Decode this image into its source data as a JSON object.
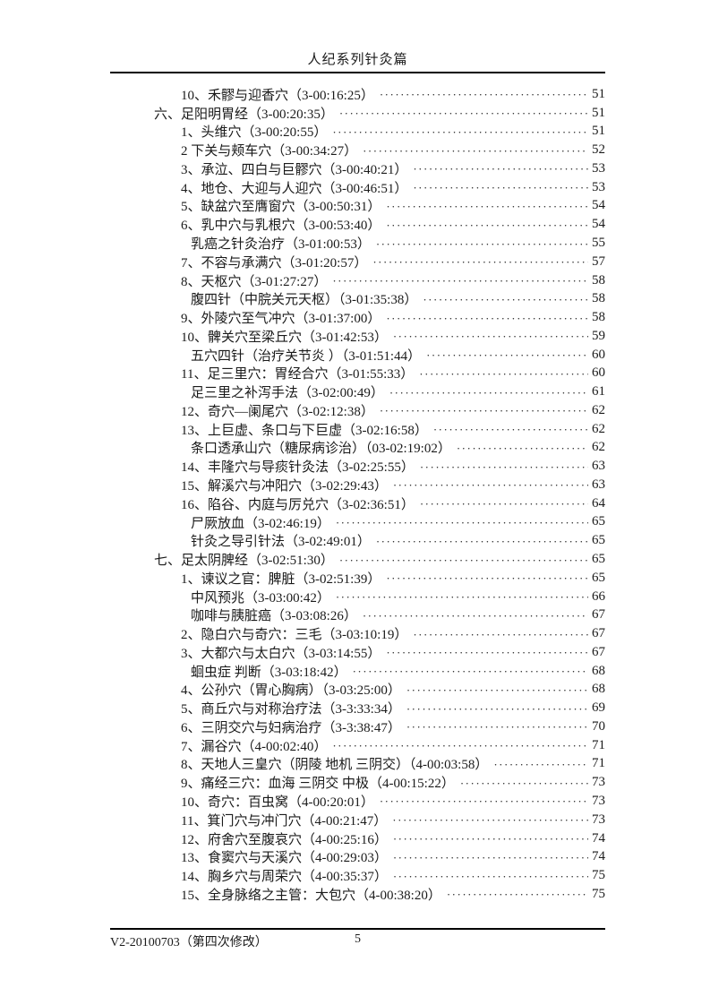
{
  "header": {
    "title": "人纪系列针灸篇"
  },
  "footer": {
    "version": "V2-20100703（第四次修改）",
    "page_number": "5"
  },
  "colors": {
    "text": "#1a1a1a",
    "rule": "#000000",
    "background": "#ffffff"
  },
  "toc": {
    "entries": [
      {
        "level": "item",
        "text": "10、禾髎与迎香穴（3-00:16:25）",
        "page": "51"
      },
      {
        "level": "chapter",
        "text": "六、足阳明胃经（3-00:20:35）",
        "page": "51"
      },
      {
        "level": "item",
        "text": "1、头维穴（3-00:20:55）",
        "page": "51"
      },
      {
        "level": "item",
        "text": "2 下关与颊车穴（3-00:34:27）",
        "page": "52"
      },
      {
        "level": "item",
        "text": "3、承泣、四白与巨髎穴（3-00:40:21）",
        "page": "53"
      },
      {
        "level": "item",
        "text": "4、地仓、大迎与人迎穴（3-00:46:51）",
        "page": "53"
      },
      {
        "level": "item",
        "text": "5、缺盆穴至膺窗穴（3-00:50:31）",
        "page": "54"
      },
      {
        "level": "item",
        "text": "6、乳中穴与乳根穴（3-00:53:40）",
        "page": "54"
      },
      {
        "level": "sub",
        "text": "乳癌之针灸治疗（3-01:00:53）",
        "page": "55"
      },
      {
        "level": "item",
        "text": "7、不容与承满穴（3-01:20:57）",
        "page": "57"
      },
      {
        "level": "item",
        "text": "8、天枢穴（3-01:27:27）",
        "page": "58"
      },
      {
        "level": "sub",
        "text": "腹四针（中脘关元天枢）（3-01:35:38）",
        "page": "58"
      },
      {
        "level": "item",
        "text": "9、外陵穴至气冲穴（3-01:37:00）",
        "page": "58"
      },
      {
        "level": "item",
        "text": "10、髀关穴至梁丘穴（3-01:42:53）",
        "page": "59"
      },
      {
        "level": "sub",
        "text": "五穴四针（治疗关节炎 ）（3-01:51:44）",
        "page": "60"
      },
      {
        "level": "item",
        "text": "11、足三里穴：胃经合穴（3-01:55:33）",
        "page": "60"
      },
      {
        "level": "sub",
        "text": "足三里之补泻手法（3-02:00:49）",
        "page": "61"
      },
      {
        "level": "item",
        "text": "12、奇穴—阑尾穴（3-02:12:38）",
        "page": "62"
      },
      {
        "level": "item",
        "text": "13、上巨虚、条口与下巨虚（3-02:16:58）",
        "page": "62"
      },
      {
        "level": "sub",
        "text": "条口透承山穴（糖尿病诊治）（03-02:19:02）",
        "page": "62"
      },
      {
        "level": "item",
        "text": "14、丰隆穴与导痰针灸法（3-02:25:55）",
        "page": "63"
      },
      {
        "level": "item",
        "text": "15、解溪穴与冲阳穴（3-02:29:43）",
        "page": "63"
      },
      {
        "level": "item",
        "text": "16、陷谷、内庭与厉兑穴（3-02:36:51）",
        "page": "64"
      },
      {
        "level": "sub",
        "text": "尸厥放血（3-02:46:19）",
        "page": "65"
      },
      {
        "level": "sub",
        "text": "针灸之导引针法（3-02:49:01）",
        "page": "65"
      },
      {
        "level": "chapter",
        "text": "七、足太阴脾经（3-02:51:30）",
        "page": "65"
      },
      {
        "level": "item",
        "text": "1、谏议之官：脾脏（3-02:51:39）",
        "page": "65"
      },
      {
        "level": "sub",
        "text": "中风预兆（3-03:00:42）",
        "page": "66"
      },
      {
        "level": "sub",
        "text": "咖啡与胰脏癌（3-03:08:26）",
        "page": "67"
      },
      {
        "level": "item",
        "text": "2、隐白穴与奇穴：三毛（3-03:10:19）",
        "page": "67"
      },
      {
        "level": "item",
        "text": "3、大都穴与太白穴（3-03:14:55）",
        "page": "67"
      },
      {
        "level": "sub",
        "text": "蛔虫症 判断（3-03:18:42）",
        "page": "68"
      },
      {
        "level": "item",
        "text": "4、公孙穴（胃心胸病）（3-03:25:00）",
        "page": "68"
      },
      {
        "level": "item",
        "text": "5、商丘穴与对称治疗法（3-3:33:34）",
        "page": "69"
      },
      {
        "level": "item",
        "text": "6、三阴交穴与妇病治疗（3-3:38:47）",
        "page": "70"
      },
      {
        "level": "item",
        "text": "7、漏谷穴（4-00:02:40）",
        "page": "71"
      },
      {
        "level": "item",
        "text": "8、天地人三皇穴（阴陵 地机 三阴交）（4-00:03:58）",
        "page": "71"
      },
      {
        "level": "item",
        "text": "9、痛经三穴：血海 三阴交 中极（4-00:15:22）",
        "page": "73"
      },
      {
        "level": "item",
        "text": "10、奇穴：百虫窝（4-00:20:01）",
        "page": "73"
      },
      {
        "level": "item",
        "text": "11、箕门穴与冲门穴（4-00:21:47）",
        "page": "73"
      },
      {
        "level": "item",
        "text": "12、府舍穴至腹哀穴（4-00:25:16）",
        "page": "74"
      },
      {
        "level": "item",
        "text": "13、食窦穴与天溪穴（4-00:29:03）",
        "page": "74"
      },
      {
        "level": "item",
        "text": "14、胸乡穴与周荣穴（4-00:35:37）",
        "page": "75"
      },
      {
        "level": "item",
        "text": "15、全身脉络之主管：大包穴（4-00:38:20）",
        "page": "75"
      }
    ]
  }
}
